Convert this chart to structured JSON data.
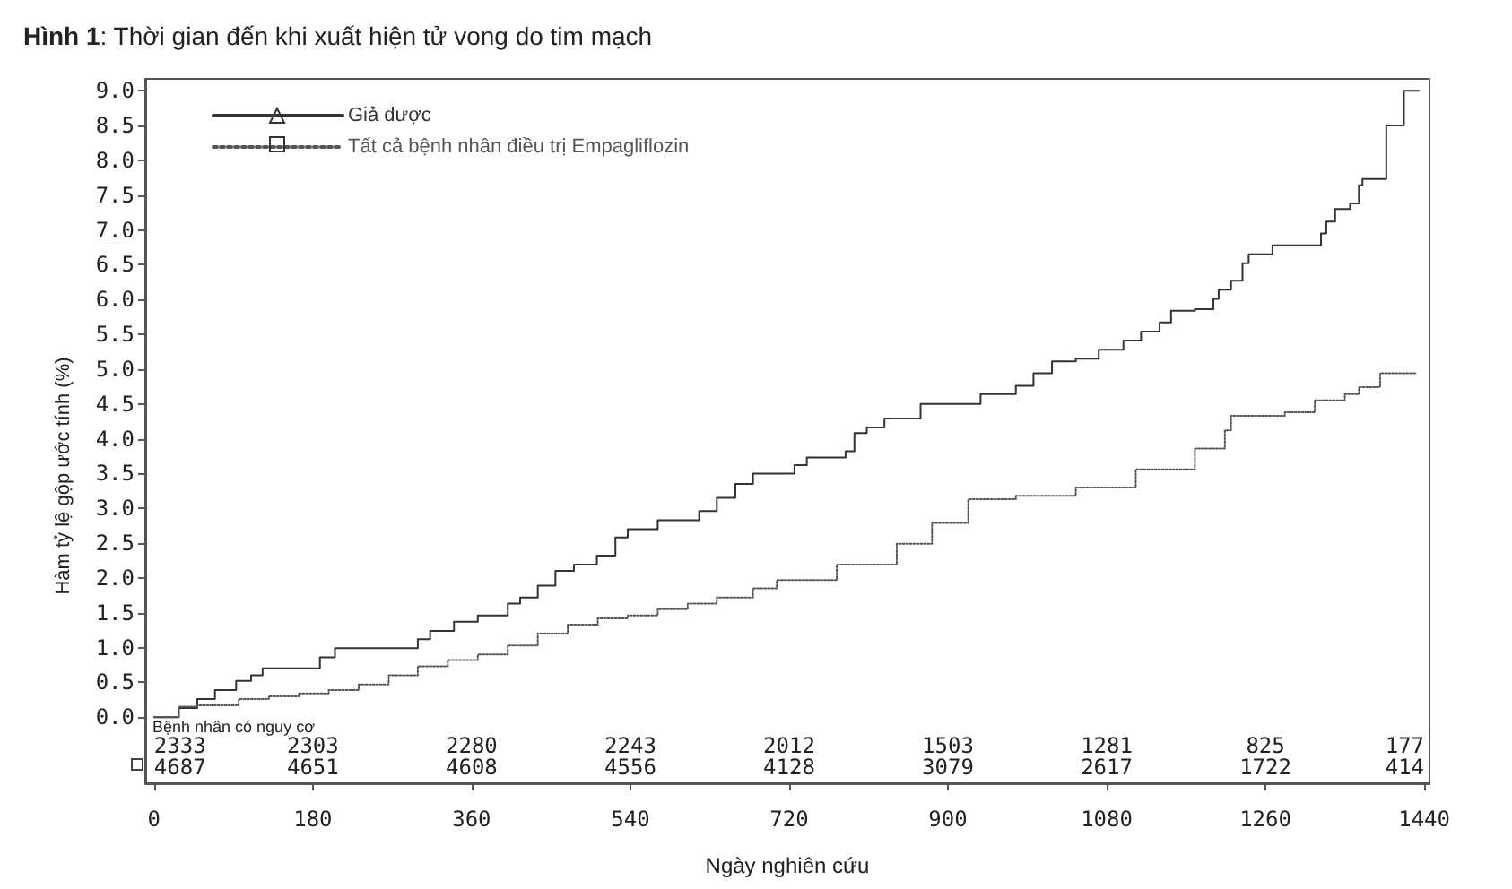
{
  "chart_data": {
    "type": "step",
    "title": "Hình 1: Thời gian đến khi xuất hiện tử vong do tim mạch",
    "xlabel": "Ngày nghiên cứu",
    "ylabel": "Hàm tỷ lệ gộp ước tính (%)",
    "series": [
      {
        "name": "Giả dược",
        "color": "#333333",
        "line_style": "solid",
        "x": [
          0,
          28,
          49,
          69,
          93,
          110,
          123,
          188,
          205,
          299,
          313,
          340,
          367,
          401,
          415,
          435,
          455,
          476,
          502,
          523,
          537,
          571,
          618,
          638,
          659,
          679,
          726,
          740,
          784,
          794,
          808,
          828,
          869,
          937,
          977,
          997,
          1018,
          1045,
          1071,
          1099,
          1119,
          1140,
          1153,
          1180,
          1201,
          1207,
          1221,
          1234,
          1241,
          1268,
          1323,
          1329,
          1339,
          1356,
          1366,
          1370,
          1397,
          1417,
          1434
        ],
        "values": [
          0,
          0.13,
          0.26,
          0.39,
          0.52,
          0.6,
          0.7,
          0.86,
          0.99,
          1.12,
          1.24,
          1.37,
          1.46,
          1.63,
          1.72,
          1.89,
          2.1,
          2.19,
          2.32,
          2.58,
          2.7,
          2.83,
          2.96,
          3.15,
          3.35,
          3.5,
          3.62,
          3.73,
          3.82,
          4.08,
          4.16,
          4.29,
          4.5,
          4.64,
          4.76,
          4.94,
          5.11,
          5.15,
          5.28,
          5.41,
          5.54,
          5.67,
          5.84,
          5.86,
          6.01,
          6.14,
          6.27,
          6.52,
          6.65,
          6.78,
          6.95,
          7.12,
          7.3,
          7.38,
          7.64,
          7.73,
          8.5,
          9.0,
          9.0
        ]
      },
      {
        "name": "Tất cả bệnh nhân điều trị Empagliflozin",
        "color": "#555555",
        "line_style": "dotted",
        "x": [
          0,
          28,
          49,
          96,
          130,
          164,
          198,
          232,
          266,
          299,
          333,
          367,
          401,
          435,
          469,
          503,
          537,
          571,
          605,
          638,
          679,
          706,
          774,
          842,
          882,
          923,
          977,
          1045,
          1113,
          1180,
          1214,
          1221,
          1282,
          1316,
          1350,
          1366,
          1390,
          1431
        ],
        "values": [
          0,
          0.15,
          0.17,
          0.26,
          0.3,
          0.34,
          0.39,
          0.47,
          0.6,
          0.73,
          0.82,
          0.9,
          1.03,
          1.2,
          1.33,
          1.42,
          1.46,
          1.55,
          1.63,
          1.72,
          1.85,
          1.97,
          2.19,
          2.49,
          2.79,
          3.13,
          3.18,
          3.3,
          3.56,
          3.86,
          4.12,
          4.33,
          4.38,
          4.55,
          4.64,
          4.74,
          4.94,
          4.94
        ]
      }
    ],
    "xlim": [
      -10,
      1446
    ],
    "xticks": [
      0,
      180,
      360,
      540,
      720,
      900,
      1080,
      1260,
      1440
    ],
    "ylim": [
      -0.95,
      9.17
    ],
    "yticks": [
      {
        "value": 0,
        "label": "0.0"
      },
      0.5,
      {
        "value": 1,
        "label": "1.0"
      },
      1.5,
      {
        "value": 2,
        "label": "2.0"
      },
      2.5,
      {
        "value": 3,
        "label": "3.0"
      },
      3.5,
      {
        "value": 4,
        "label": "4.0"
      },
      4.5,
      {
        "value": 5,
        "label": "5.0"
      },
      5.5,
      {
        "value": 6,
        "label": "6.0"
      },
      6.5,
      {
        "value": 7,
        "label": "7.0"
      },
      7.5,
      {
        "value": 8,
        "label": "8.0"
      },
      8.5,
      {
        "value": 9,
        "label": "9.0"
      }
    ],
    "legend": "top left",
    "annotations": [
      "Bệnh nhân có nguy cơ",
      "2333",
      "2303",
      "2280",
      "2243",
      "2012",
      "1503",
      "1281",
      "825",
      "177",
      "4687",
      "4651",
      "4608",
      "4556",
      "4128",
      "3079",
      "2617",
      "1722",
      "414"
    ]
  }
}
